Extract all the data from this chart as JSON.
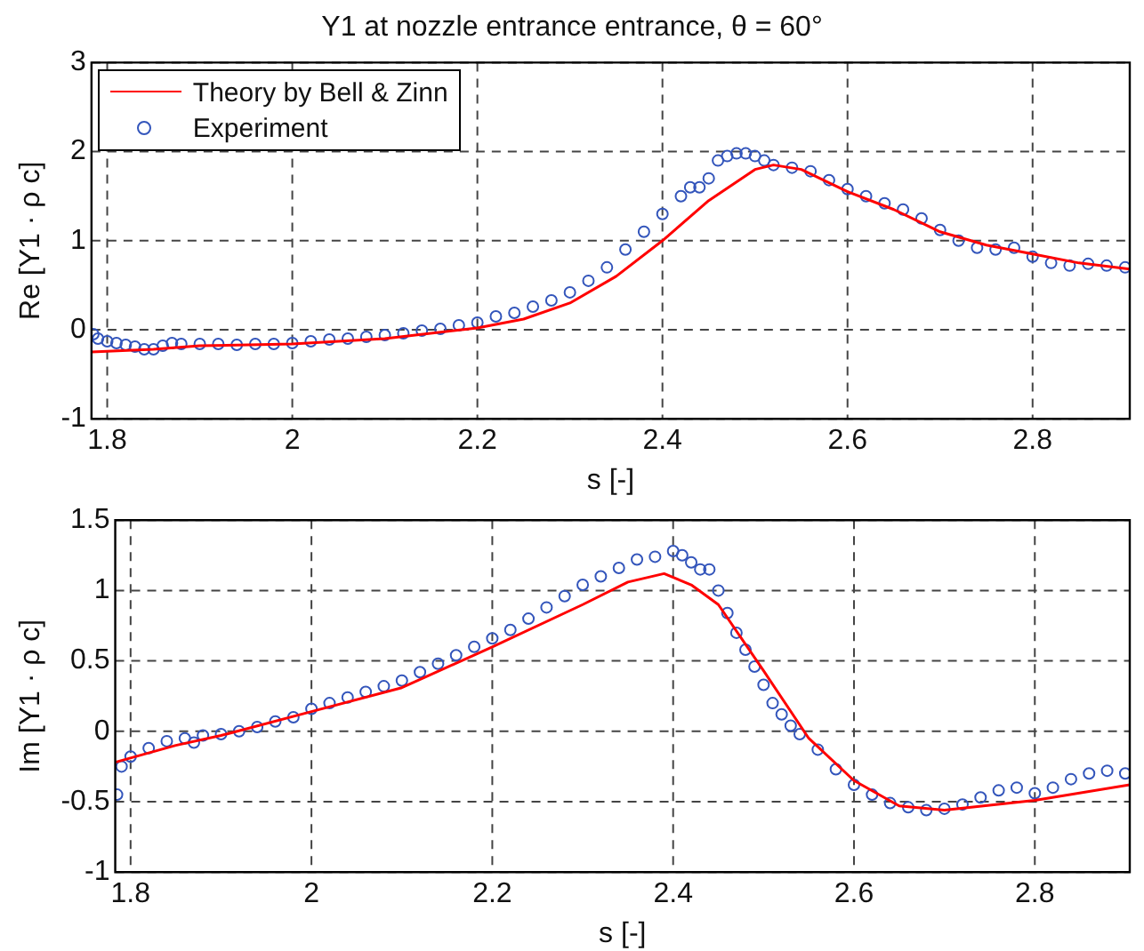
{
  "chart_data": [
    {
      "type": "line",
      "title": "Y1 at nozzle entrance entrance, θ = 60°",
      "xlabel": "s [-]",
      "ylabel": "Re [Y1 · ρ c]",
      "xlim": [
        1.783,
        2.905
      ],
      "xticks": [
        1.8,
        2,
        2.2,
        2.4,
        2.6,
        2.8
      ],
      "ylim": [
        -1,
        3
      ],
      "yticks": [
        -1,
        0,
        1,
        2,
        3
      ],
      "grid": true,
      "line_style": "solid",
      "legend": "top left",
      "series": [
        {
          "name": "Theory by Bell & Zinn",
          "marker": "none",
          "color": "#ff0000",
          "x": [
            1.783,
            1.85,
            1.9,
            2.0,
            2.1,
            2.2,
            2.25,
            2.3,
            2.35,
            2.4,
            2.45,
            2.5,
            2.52,
            2.55,
            2.6,
            2.65,
            2.7,
            2.75,
            2.8,
            2.85,
            2.905
          ],
          "values": [
            -0.25,
            -0.22,
            -0.18,
            -0.16,
            -0.1,
            0.02,
            0.12,
            0.3,
            0.6,
            1.0,
            1.45,
            1.8,
            1.85,
            1.8,
            1.55,
            1.35,
            1.1,
            0.95,
            0.85,
            0.75,
            0.68
          ]
        },
        {
          "name": "Experiment",
          "type": "scatter",
          "marker": "circle",
          "color": "#3355bb",
          "x": [
            1.785,
            1.79,
            1.8,
            1.81,
            1.82,
            1.83,
            1.84,
            1.85,
            1.86,
            1.87,
            1.88,
            1.9,
            1.92,
            1.94,
            1.96,
            1.98,
            2.0,
            2.02,
            2.04,
            2.06,
            2.08,
            2.1,
            2.12,
            2.14,
            2.16,
            2.18,
            2.2,
            2.22,
            2.24,
            2.26,
            2.28,
            2.3,
            2.32,
            2.34,
            2.36,
            2.38,
            2.4,
            2.42,
            2.43,
            2.44,
            2.45,
            2.46,
            2.47,
            2.48,
            2.49,
            2.5,
            2.51,
            2.52,
            2.54,
            2.56,
            2.58,
            2.6,
            2.62,
            2.64,
            2.66,
            2.68,
            2.7,
            2.72,
            2.74,
            2.76,
            2.78,
            2.8,
            2.82,
            2.84,
            2.86,
            2.88,
            2.9
          ],
          "values": [
            -0.05,
            -0.1,
            -0.13,
            -0.15,
            -0.17,
            -0.19,
            -0.22,
            -0.22,
            -0.18,
            -0.15,
            -0.16,
            -0.16,
            -0.16,
            -0.17,
            -0.16,
            -0.16,
            -0.15,
            -0.13,
            -0.11,
            -0.1,
            -0.08,
            -0.06,
            -0.04,
            -0.01,
            0.01,
            0.05,
            0.08,
            0.15,
            0.19,
            0.26,
            0.33,
            0.42,
            0.55,
            0.7,
            0.9,
            1.1,
            1.3,
            1.5,
            1.6,
            1.6,
            1.7,
            1.9,
            1.95,
            1.98,
            1.98,
            1.95,
            1.9,
            1.85,
            1.82,
            1.78,
            1.68,
            1.58,
            1.5,
            1.42,
            1.35,
            1.25,
            1.12,
            1.0,
            0.92,
            0.9,
            0.92,
            0.82,
            0.75,
            0.72,
            0.74,
            0.72,
            0.7
          ]
        }
      ]
    },
    {
      "type": "line",
      "xlabel": "s [-]",
      "ylabel": "Im [Y1 · ρ c]",
      "xlim": [
        1.783,
        2.905
      ],
      "xticks": [
        1.8,
        2,
        2.2,
        2.4,
        2.6,
        2.8
      ],
      "ylim": [
        -1,
        1.5
      ],
      "yticks": [
        -1,
        -0.5,
        0,
        0.5,
        1,
        1.5
      ],
      "grid": true,
      "line_style": "solid",
      "series": [
        {
          "marker": "none",
          "color": "#ff0000",
          "x": [
            1.783,
            1.85,
            1.9,
            2.0,
            2.1,
            2.2,
            2.3,
            2.35,
            2.39,
            2.42,
            2.45,
            2.5,
            2.55,
            2.6,
            2.65,
            2.7,
            2.8,
            2.905
          ],
          "values": [
            -0.22,
            -0.1,
            -0.03,
            0.14,
            0.31,
            0.6,
            0.9,
            1.06,
            1.12,
            1.04,
            0.9,
            0.43,
            -0.05,
            -0.35,
            -0.53,
            -0.56,
            -0.49,
            -0.38
          ]
        },
        {
          "type": "scatter",
          "marker": "circle",
          "color": "#3355bb",
          "x": [
            1.785,
            1.79,
            1.8,
            1.82,
            1.84,
            1.86,
            1.87,
            1.88,
            1.9,
            1.92,
            1.94,
            1.96,
            1.98,
            2.0,
            2.02,
            2.04,
            2.06,
            2.08,
            2.1,
            2.12,
            2.14,
            2.16,
            2.18,
            2.2,
            2.22,
            2.24,
            2.26,
            2.28,
            2.3,
            2.32,
            2.34,
            2.36,
            2.38,
            2.4,
            2.41,
            2.42,
            2.43,
            2.44,
            2.45,
            2.46,
            2.47,
            2.48,
            2.49,
            2.5,
            2.51,
            2.52,
            2.53,
            2.54,
            2.56,
            2.58,
            2.6,
            2.62,
            2.64,
            2.66,
            2.68,
            2.7,
            2.72,
            2.74,
            2.76,
            2.78,
            2.8,
            2.82,
            2.84,
            2.86,
            2.88,
            2.9
          ],
          "values": [
            -0.45,
            -0.25,
            -0.18,
            -0.12,
            -0.07,
            -0.05,
            -0.08,
            -0.03,
            -0.02,
            0.0,
            0.03,
            0.07,
            0.1,
            0.16,
            0.2,
            0.24,
            0.28,
            0.32,
            0.36,
            0.42,
            0.48,
            0.54,
            0.6,
            0.66,
            0.72,
            0.8,
            0.88,
            0.96,
            1.04,
            1.1,
            1.16,
            1.22,
            1.24,
            1.28,
            1.25,
            1.2,
            1.15,
            1.15,
            1.0,
            0.84,
            0.7,
            0.58,
            0.46,
            0.33,
            0.2,
            0.12,
            0.04,
            -0.02,
            -0.13,
            -0.27,
            -0.38,
            -0.45,
            -0.51,
            -0.54,
            -0.56,
            -0.55,
            -0.52,
            -0.47,
            -0.42,
            -0.4,
            -0.44,
            -0.4,
            -0.34,
            -0.3,
            -0.28,
            -0.3
          ]
        }
      ]
    }
  ]
}
